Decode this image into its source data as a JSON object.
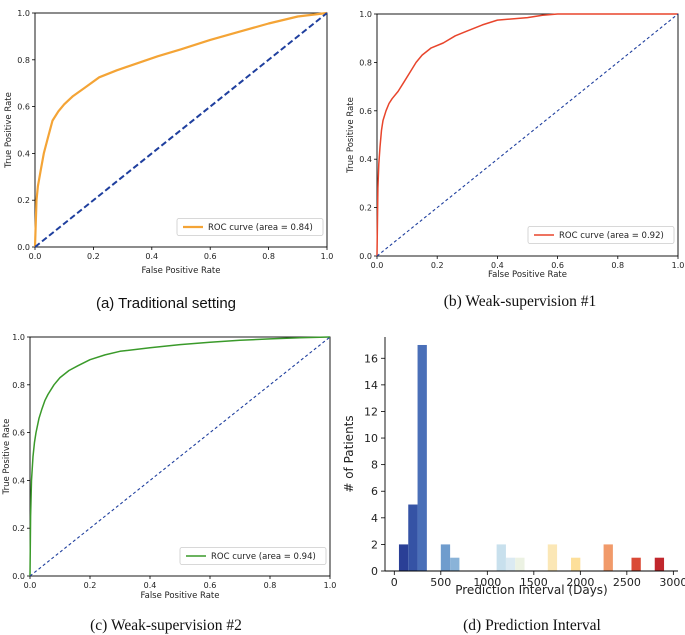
{
  "figure": {
    "captions": [
      "(a)  Traditional setting",
      "(b) Weak-supervision  #1",
      "(c) Weak-supervision  #2",
      "(d) Prediction  Interval"
    ]
  },
  "chart_data": [
    {
      "type": "line",
      "id": "a",
      "xlabel": "False Positive Rate",
      "ylabel": "True Positive Rate",
      "xlim": [
        0,
        1
      ],
      "ylim": [
        0,
        1
      ],
      "xticks": [
        "0.0",
        "0.2",
        "0.4",
        "0.6",
        "0.8",
        "1.0"
      ],
      "yticks": [
        "0.0",
        "0.2",
        "0.4",
        "0.6",
        "0.8",
        "1.0"
      ],
      "legend": {
        "label": "ROC curve (area = 0.84)",
        "location": "lower-right"
      },
      "series": [
        {
          "name": "ROC curve (area = 0.84)",
          "color": "#f4a436",
          "x": [
            0,
            0.005,
            0.01,
            0.02,
            0.03,
            0.045,
            0.06,
            0.08,
            0.1,
            0.13,
            0.17,
            0.22,
            0.28,
            0.35,
            0.42,
            0.5,
            0.6,
            0.7,
            0.8,
            0.9,
            1.0
          ],
          "y": [
            0,
            0.2,
            0.26,
            0.33,
            0.4,
            0.47,
            0.54,
            0.58,
            0.61,
            0.645,
            0.68,
            0.725,
            0.755,
            0.785,
            0.815,
            0.845,
            0.885,
            0.92,
            0.955,
            0.985,
            1.0
          ]
        },
        {
          "name": "chance",
          "color": "#1f3f9e",
          "dashed": true,
          "x": [
            0,
            1
          ],
          "y": [
            0,
            1
          ]
        }
      ]
    },
    {
      "type": "line",
      "id": "b",
      "xlabel": "False Positive Rate",
      "ylabel": "True Positive Rate",
      "xlim": [
        0,
        1
      ],
      "ylim": [
        0,
        1
      ],
      "xticks": [
        "0.0",
        "0.2",
        "0.4",
        "0.6",
        "0.8",
        "1.0"
      ],
      "yticks": [
        "0.0",
        "0.2",
        "0.4",
        "0.6",
        "0.8",
        "1.0"
      ],
      "legend": {
        "label": "ROC curve (area = 0.92)",
        "location": "lower-right"
      },
      "series": [
        {
          "name": "ROC curve (area = 0.92)",
          "color": "#e8452c",
          "x": [
            0,
            0.003,
            0.006,
            0.01,
            0.015,
            0.02,
            0.03,
            0.04,
            0.05,
            0.07,
            0.09,
            0.11,
            0.13,
            0.15,
            0.18,
            0.22,
            0.26,
            0.3,
            0.35,
            0.4,
            0.5,
            0.55,
            0.6,
            0.8,
            1.0
          ],
          "y": [
            0,
            0.28,
            0.38,
            0.45,
            0.52,
            0.56,
            0.6,
            0.63,
            0.65,
            0.68,
            0.72,
            0.76,
            0.8,
            0.83,
            0.86,
            0.88,
            0.91,
            0.93,
            0.955,
            0.975,
            0.985,
            0.995,
            1.0,
            1.0,
            1.0
          ]
        },
        {
          "name": "chance",
          "color": "#1f3f9e",
          "dashed": true,
          "x": [
            0,
            1
          ],
          "y": [
            0,
            1
          ]
        }
      ]
    },
    {
      "type": "line",
      "id": "c",
      "xlabel": "False Positive Rate",
      "ylabel": "True Positive Rate",
      "xlim": [
        0,
        1
      ],
      "ylim": [
        0,
        1
      ],
      "xticks": [
        "0.0",
        "0.2",
        "0.4",
        "0.6",
        "0.8",
        "1.0"
      ],
      "yticks": [
        "0.0",
        "0.2",
        "0.4",
        "0.6",
        "0.8",
        "1.0"
      ],
      "legend": {
        "label": "ROC curve (area = 0.94)",
        "location": "lower-right"
      },
      "series": [
        {
          "name": "ROC curve (area = 0.94)",
          "color": "#3a9a2a",
          "x": [
            0,
            0.002,
            0.005,
            0.01,
            0.015,
            0.02,
            0.03,
            0.04,
            0.05,
            0.06,
            0.08,
            0.1,
            0.13,
            0.16,
            0.2,
            0.25,
            0.3,
            0.4,
            0.5,
            0.6,
            0.7,
            0.8,
            0.9,
            1.0
          ],
          "y": [
            0,
            0.25,
            0.4,
            0.5,
            0.56,
            0.6,
            0.66,
            0.7,
            0.735,
            0.76,
            0.8,
            0.83,
            0.86,
            0.88,
            0.905,
            0.925,
            0.94,
            0.955,
            0.968,
            0.978,
            0.986,
            0.992,
            0.997,
            1.0
          ]
        },
        {
          "name": "chance",
          "color": "#1f3f9e",
          "dashed": true,
          "x": [
            0,
            1
          ],
          "y": [
            0,
            1
          ]
        }
      ]
    },
    {
      "type": "bar",
      "id": "d",
      "xlabel": "Prediction Interval (Days)",
      "ylabel": "# of Patients",
      "xlim": [
        -100,
        3050
      ],
      "ylim": [
        0,
        17.6
      ],
      "xticks": [
        0,
        500,
        1000,
        1500,
        2000,
        2500,
        3000
      ],
      "yticks": [
        0,
        2,
        4,
        6,
        8,
        10,
        12,
        14,
        16
      ],
      "bin_width": 100,
      "bars": [
        {
          "left": 50,
          "value": 2,
          "color": "#2a3f96"
        },
        {
          "left": 150,
          "value": 5,
          "color": "#3553a5"
        },
        {
          "left": 250,
          "value": 17,
          "color": "#4a6fb8"
        },
        {
          "left": 500,
          "value": 2,
          "color": "#6f9ccd"
        },
        {
          "left": 600,
          "value": 1,
          "color": "#8ab3d8"
        },
        {
          "left": 1100,
          "value": 2,
          "color": "#c8e0ed"
        },
        {
          "left": 1200,
          "value": 1,
          "color": "#dbeaf2"
        },
        {
          "left": 1300,
          "value": 1,
          "color": "#ecf2e3"
        },
        {
          "left": 1650,
          "value": 2,
          "color": "#fbe7b6"
        },
        {
          "left": 1900,
          "value": 1,
          "color": "#fddf9a"
        },
        {
          "left": 2250,
          "value": 2,
          "color": "#f19a6a"
        },
        {
          "left": 2550,
          "value": 1,
          "color": "#da4a36"
        },
        {
          "left": 2800,
          "value": 1,
          "color": "#c1272d"
        }
      ]
    }
  ]
}
